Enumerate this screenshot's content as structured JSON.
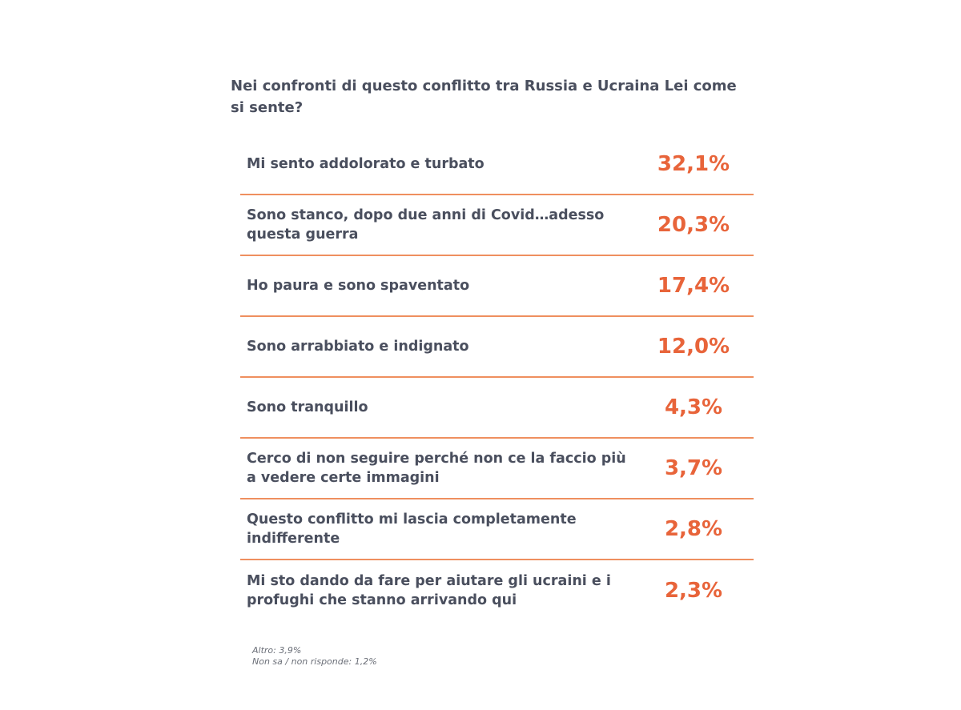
{
  "question": "Nei confronti di questo conflitto tra Russia e Ucraina Lei come si sente?",
  "chart_data": {
    "type": "table",
    "title": "Nei confronti di questo conflitto tra Russia e Ucraina Lei come si sente?",
    "rows": [
      {
        "label": "Mi sento addolorato e turbato",
        "value_label": "32,1%",
        "value": 32.1
      },
      {
        "label": "Sono stanco, dopo due anni di Covid…adesso questa guerra",
        "value_label": "20,3%",
        "value": 20.3
      },
      {
        "label": "Ho paura e sono spaventato",
        "value_label": "17,4%",
        "value": 17.4
      },
      {
        "label": "Sono arrabbiato e indignato",
        "value_label": "12,0%",
        "value": 12.0
      },
      {
        "label": "Sono tranquillo",
        "value_label": "4,3%",
        "value": 4.3
      },
      {
        "label": "Cerco di non seguire perché non ce la faccio più a vedere certe immagini",
        "value_label": "3,7%",
        "value": 3.7
      },
      {
        "label": "Questo conflitto mi lascia completamente indifferente",
        "value_label": "2,8%",
        "value": 2.8
      },
      {
        "label": "Mi sto dando da fare per aiutare gli ucraini e i profughi che stanno arrivando qui",
        "value_label": "2,3%",
        "value": 2.3
      }
    ],
    "notes": [
      "Altro: 3,9%",
      "Non sa / non risponde: 1,2%"
    ]
  },
  "colors": {
    "accent": "#e8643a",
    "divider": "#ef8f5f",
    "text": "#4a4f5e"
  }
}
